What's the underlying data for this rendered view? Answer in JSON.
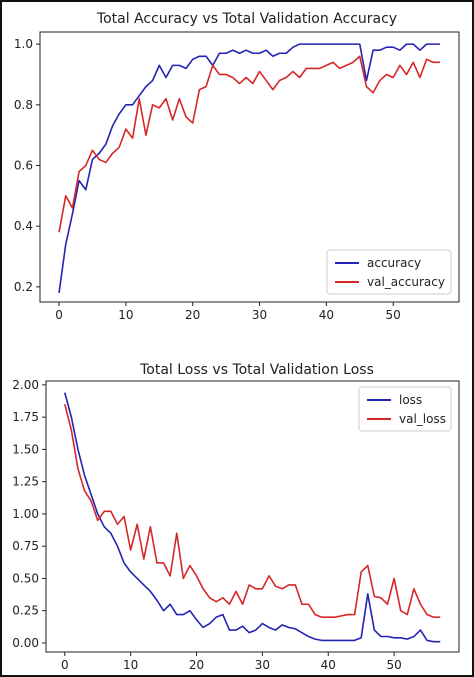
{
  "chart_data": [
    {
      "type": "line",
      "title": "Total Accuracy vs Total Validation Accuracy",
      "xlabel": "",
      "ylabel": "",
      "xlim": [
        -2.85,
        59.85
      ],
      "ylim": [
        0.15,
        1.04
      ],
      "xticks": [
        0,
        10,
        20,
        30,
        40,
        50
      ],
      "yticks": [
        0.2,
        0.4,
        0.6,
        0.8,
        1.0
      ],
      "ytick_labels": [
        "0.2",
        "0.4",
        "0.6",
        "0.8",
        "1.0"
      ],
      "grid": false,
      "legend_position": "lower-right",
      "series": [
        {
          "name": "accuracy",
          "color": "#2323b5",
          "x": [
            0,
            1,
            2,
            3,
            4,
            5,
            6,
            7,
            8,
            9,
            10,
            11,
            12,
            13,
            14,
            15,
            16,
            17,
            18,
            19,
            20,
            21,
            22,
            23,
            24,
            25,
            26,
            27,
            28,
            29,
            30,
            31,
            32,
            33,
            34,
            35,
            36,
            37,
            38,
            39,
            40,
            41,
            42,
            43,
            44,
            45,
            46,
            47,
            48,
            49,
            50,
            51,
            52,
            53,
            54,
            55,
            56,
            57
          ],
          "values": [
            0.18,
            0.34,
            0.44,
            0.55,
            0.52,
            0.62,
            0.64,
            0.67,
            0.73,
            0.77,
            0.8,
            0.8,
            0.83,
            0.86,
            0.88,
            0.93,
            0.89,
            0.93,
            0.93,
            0.92,
            0.95,
            0.96,
            0.96,
            0.93,
            0.97,
            0.97,
            0.98,
            0.97,
            0.98,
            0.97,
            0.97,
            0.98,
            0.96,
            0.97,
            0.97,
            0.99,
            1.0,
            1.0,
            1.0,
            1.0,
            1.0,
            1.0,
            1.0,
            1.0,
            1.0,
            1.0,
            0.88,
            0.98,
            0.98,
            0.99,
            0.99,
            0.98,
            1.0,
            1.0,
            0.98,
            1.0,
            1.0,
            1.0
          ]
        },
        {
          "name": "val_accuracy",
          "color": "#d62728",
          "x": [
            0,
            1,
            2,
            3,
            4,
            5,
            6,
            7,
            8,
            9,
            10,
            11,
            12,
            13,
            14,
            15,
            16,
            17,
            18,
            19,
            20,
            21,
            22,
            23,
            24,
            25,
            26,
            27,
            28,
            29,
            30,
            31,
            32,
            33,
            34,
            35,
            36,
            37,
            38,
            39,
            40,
            41,
            42,
            43,
            44,
            45,
            46,
            47,
            48,
            49,
            50,
            51,
            52,
            53,
            54,
            55,
            56,
            57
          ],
          "values": [
            0.38,
            0.5,
            0.46,
            0.58,
            0.6,
            0.65,
            0.62,
            0.61,
            0.64,
            0.66,
            0.72,
            0.69,
            0.82,
            0.7,
            0.8,
            0.79,
            0.82,
            0.75,
            0.82,
            0.76,
            0.74,
            0.85,
            0.86,
            0.93,
            0.9,
            0.9,
            0.89,
            0.87,
            0.89,
            0.87,
            0.91,
            0.88,
            0.85,
            0.88,
            0.89,
            0.91,
            0.89,
            0.92,
            0.92,
            0.92,
            0.93,
            0.94,
            0.92,
            0.93,
            0.94,
            0.96,
            0.86,
            0.84,
            0.88,
            0.9,
            0.89,
            0.93,
            0.9,
            0.94,
            0.89,
            0.95,
            0.94,
            0.94
          ]
        }
      ]
    },
    {
      "type": "line",
      "title": "Total Loss vs Total Validation Loss",
      "xlabel": "",
      "ylabel": "",
      "xlim": [
        -2.85,
        59.85
      ],
      "ylim": [
        -0.07,
        2.03
      ],
      "xticks": [
        0,
        10,
        20,
        30,
        40,
        50
      ],
      "yticks": [
        0.0,
        0.25,
        0.5,
        0.75,
        1.0,
        1.25,
        1.5,
        1.75,
        2.0
      ],
      "ytick_labels": [
        "0.00",
        "0.25",
        "0.50",
        "0.75",
        "1.00",
        "1.25",
        "1.50",
        "1.75",
        "2.00"
      ],
      "grid": false,
      "legend_position": "upper-right",
      "series": [
        {
          "name": "loss",
          "color": "#2323b5",
          "x": [
            0,
            1,
            2,
            3,
            4,
            5,
            6,
            7,
            8,
            9,
            10,
            11,
            12,
            13,
            14,
            15,
            16,
            17,
            18,
            19,
            20,
            21,
            22,
            23,
            24,
            25,
            26,
            27,
            28,
            29,
            30,
            31,
            32,
            33,
            34,
            35,
            36,
            37,
            38,
            39,
            40,
            41,
            42,
            43,
            44,
            45,
            46,
            47,
            48,
            49,
            50,
            51,
            52,
            53,
            54,
            55,
            56,
            57
          ],
          "values": [
            1.94,
            1.75,
            1.5,
            1.3,
            1.15,
            1.0,
            0.9,
            0.85,
            0.75,
            0.62,
            0.55,
            0.5,
            0.45,
            0.4,
            0.33,
            0.25,
            0.3,
            0.22,
            0.22,
            0.25,
            0.18,
            0.12,
            0.15,
            0.2,
            0.22,
            0.1,
            0.1,
            0.13,
            0.08,
            0.1,
            0.15,
            0.12,
            0.1,
            0.14,
            0.12,
            0.11,
            0.08,
            0.05,
            0.03,
            0.02,
            0.02,
            0.02,
            0.02,
            0.02,
            0.02,
            0.04,
            0.38,
            0.1,
            0.05,
            0.05,
            0.04,
            0.04,
            0.03,
            0.05,
            0.1,
            0.02,
            0.01,
            0.01
          ]
        },
        {
          "name": "val_loss",
          "color": "#d62728",
          "x": [
            0,
            1,
            2,
            3,
            4,
            5,
            6,
            7,
            8,
            9,
            10,
            11,
            12,
            13,
            14,
            15,
            16,
            17,
            18,
            19,
            20,
            21,
            22,
            23,
            24,
            25,
            26,
            27,
            28,
            29,
            30,
            31,
            32,
            33,
            34,
            35,
            36,
            37,
            38,
            39,
            40,
            41,
            42,
            43,
            44,
            45,
            46,
            47,
            48,
            49,
            50,
            51,
            52,
            53,
            54,
            55,
            56,
            57
          ],
          "values": [
            1.85,
            1.65,
            1.35,
            1.18,
            1.1,
            0.95,
            1.02,
            1.02,
            0.92,
            0.98,
            0.72,
            0.92,
            0.65,
            0.9,
            0.62,
            0.62,
            0.52,
            0.85,
            0.5,
            0.6,
            0.52,
            0.42,
            0.35,
            0.32,
            0.35,
            0.3,
            0.4,
            0.3,
            0.45,
            0.42,
            0.42,
            0.52,
            0.44,
            0.42,
            0.45,
            0.45,
            0.3,
            0.3,
            0.22,
            0.2,
            0.2,
            0.2,
            0.21,
            0.22,
            0.22,
            0.55,
            0.6,
            0.36,
            0.35,
            0.3,
            0.5,
            0.25,
            0.22,
            0.42,
            0.3,
            0.22,
            0.2,
            0.2
          ]
        }
      ]
    }
  ]
}
